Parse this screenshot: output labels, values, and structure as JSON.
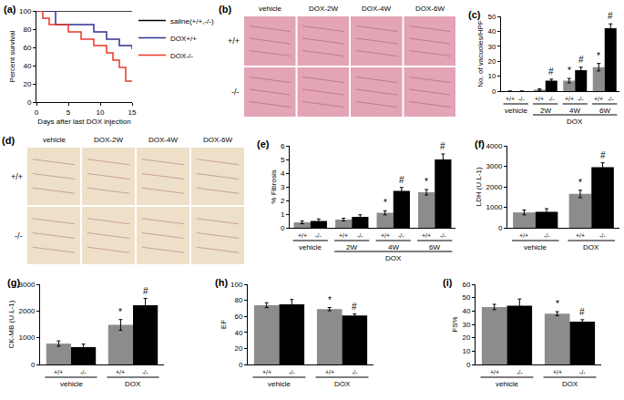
{
  "chart_data": [
    {
      "type": "line",
      "title": "(a)",
      "x_label": "Days after last DOX injection",
      "y_label": "Percent survival",
      "xlim": [
        0,
        15
      ],
      "xticks": [
        0,
        5,
        10,
        15
      ],
      "ylim": [
        0,
        100
      ],
      "yticks": [
        0,
        20,
        40,
        60,
        80,
        100
      ],
      "legend": "upper right",
      "line_style": "step",
      "series": [
        {
          "name": "saline(+/+,-/-)",
          "color": "#000000",
          "x": [
            0,
            15
          ],
          "values": [
            100,
            100
          ]
        },
        {
          "name": "DOX+/+",
          "color": "#2e3192",
          "x": [
            0,
            3,
            9,
            11,
            13,
            15
          ],
          "values": [
            100,
            85,
            77,
            69,
            62,
            58
          ]
        },
        {
          "name": "DOX-/-",
          "color": "#e8392a",
          "x": [
            0,
            1,
            2,
            5,
            7,
            9,
            11,
            12,
            13,
            14,
            15
          ],
          "values": [
            100,
            92,
            85,
            77,
            69,
            62,
            54,
            46,
            38,
            23,
            23
          ]
        }
      ]
    },
    {
      "type": "image_grid",
      "title": "(b)",
      "columns": [
        "vehicle",
        "DOX-2W",
        "DOX-4W",
        "DOX-6W"
      ],
      "rows": [
        "+/+",
        "-/-"
      ],
      "color": "#e3a4b6"
    },
    {
      "type": "bar",
      "title": "(c)",
      "y_label": "No. of vacuoles/HPF",
      "categories": [
        "vehicle",
        "2W",
        "4W",
        "6W"
      ],
      "group_labels": [
        {
          "text": "DOX",
          "categories": [
            "2W",
            "4W",
            "6W"
          ]
        }
      ],
      "ylim": [
        0,
        50
      ],
      "yticks": [
        0,
        10,
        20,
        30,
        40,
        50
      ],
      "series": [
        {
          "name": "+/+",
          "color": "#8c8c8c",
          "values": [
            0,
            1,
            7,
            16
          ],
          "errors": [
            0,
            0.5,
            1.5,
            2.5
          ],
          "marks": [
            null,
            null,
            "*",
            "*"
          ]
        },
        {
          "name": "-/-",
          "color": "#000000",
          "values": [
            0,
            7,
            14,
            42
          ],
          "errors": [
            0,
            1,
            2,
            3
          ],
          "marks": [
            null,
            "#",
            "#",
            "#"
          ]
        }
      ]
    },
    {
      "type": "image_grid",
      "title": "(d)",
      "columns": [
        "vehicle",
        "DOX-2W",
        "DOX-4W",
        "DOX-6W"
      ],
      "rows": [
        "+/+",
        "-/-"
      ],
      "color": "#eee0c8"
    },
    {
      "type": "bar",
      "title": "(e)",
      "y_label": "% Fibrosis",
      "categories": [
        "vehicle",
        "2W",
        "4W",
        "6W"
      ],
      "group_labels": [
        {
          "text": "DOX",
          "categories": [
            "2W",
            "4W",
            "6W"
          ]
        }
      ],
      "ylim": [
        0,
        6
      ],
      "yticks": [
        0,
        1,
        2,
        3,
        4,
        5,
        6
      ],
      "series": [
        {
          "name": "+/+",
          "color": "#8c8c8c",
          "values": [
            0.4,
            0.6,
            1.1,
            2.6
          ],
          "errors": [
            0.1,
            0.1,
            0.15,
            0.2
          ],
          "marks": [
            null,
            null,
            "*",
            "*"
          ]
        },
        {
          "name": "-/-",
          "color": "#000000",
          "values": [
            0.5,
            0.8,
            2.7,
            5.0
          ],
          "errors": [
            0.15,
            0.15,
            0.25,
            0.4
          ],
          "marks": [
            null,
            null,
            "#",
            "#"
          ]
        }
      ]
    },
    {
      "type": "bar",
      "title": "(f)",
      "y_label": "LDH (U.L-1)",
      "categories": [
        "vehicle",
        "DOX"
      ],
      "ylim": [
        0,
        4000
      ],
      "yticks": [
        0,
        1000,
        2000,
        3000,
        4000
      ],
      "series": [
        {
          "name": "+/+",
          "color": "#8c8c8c",
          "values": [
            750,
            1650
          ],
          "errors": [
            120,
            180
          ],
          "marks": [
            null,
            "*"
          ]
        },
        {
          "name": "-/-",
          "color": "#000000",
          "values": [
            780,
            2950
          ],
          "errors": [
            150,
            220
          ],
          "marks": [
            null,
            "#"
          ]
        }
      ]
    },
    {
      "type": "bar",
      "title": "(g)",
      "y_label": "CK-MB (U.L-1)",
      "categories": [
        "vehicle",
        "DOX"
      ],
      "ylim": [
        0,
        3000
      ],
      "yticks": [
        0,
        1000,
        2000,
        3000
      ],
      "series": [
        {
          "name": "+/+",
          "color": "#8c8c8c",
          "values": [
            780,
            1480
          ],
          "errors": [
            100,
            200
          ],
          "marks": [
            null,
            "*"
          ]
        },
        {
          "name": "-/-",
          "color": "#000000",
          "values": [
            650,
            2220
          ],
          "errors": [
            110,
            250
          ],
          "marks": [
            null,
            "#"
          ]
        }
      ]
    },
    {
      "type": "bar",
      "title": "(h)",
      "y_label": "EF",
      "categories": [
        "vehicle",
        "DOX"
      ],
      "ylim": [
        0,
        100
      ],
      "yticks": [
        0,
        20,
        40,
        60,
        80,
        100
      ],
      "series": [
        {
          "name": "+/+",
          "color": "#8c8c8c",
          "values": [
            74,
            69
          ],
          "errors": [
            3,
            2
          ],
          "marks": [
            null,
            "*"
          ]
        },
        {
          "name": "-/-",
          "color": "#000000",
          "values": [
            75,
            61
          ],
          "errors": [
            6,
            2
          ],
          "marks": [
            null,
            "#"
          ]
        }
      ]
    },
    {
      "type": "bar",
      "title": "(i)",
      "y_label": "FS%",
      "categories": [
        "vehicle",
        "DOX"
      ],
      "ylim": [
        0,
        60
      ],
      "yticks": [
        0,
        10,
        20,
        30,
        40,
        50,
        60
      ],
      "series": [
        {
          "name": "+/+",
          "color": "#8c8c8c",
          "values": [
            43,
            38
          ],
          "errors": [
            2,
            1.5
          ],
          "marks": [
            null,
            "*"
          ]
        },
        {
          "name": "-/-",
          "color": "#000000",
          "values": [
            44,
            32
          ],
          "errors": [
            5,
            1.5
          ],
          "marks": [
            null,
            "#"
          ]
        }
      ]
    }
  ]
}
